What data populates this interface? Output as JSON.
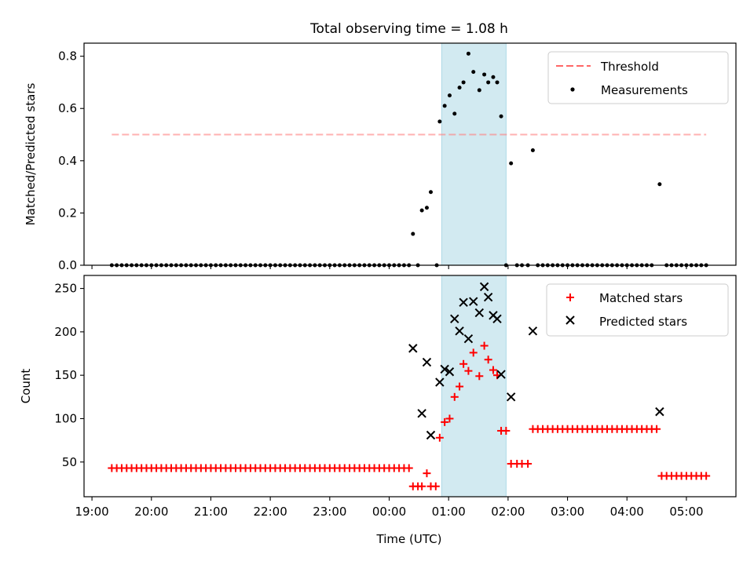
{
  "figure": {
    "title": "Total observing time = 1.08 h",
    "xlabel": "Time (UTC)",
    "x_tick_labels": [
      "19:00",
      "20:00",
      "21:00",
      "22:00",
      "23:00",
      "00:00",
      "01:00",
      "02:00",
      "03:00",
      "04:00",
      "05:00"
    ],
    "shaded_span": [
      "00:53",
      "01:58"
    ],
    "span_color": "#add8e6"
  },
  "chart_data": [
    {
      "type": "scatter",
      "ylabel": "Matched/Predicted stars",
      "xlim": [
        "18:52",
        "05:50"
      ],
      "ylim": [
        0,
        0.85
      ],
      "y_ticks": [
        "0.0",
        "0.2",
        "0.4",
        "0.6",
        "0.8"
      ],
      "legend_position": "top-right",
      "threshold": {
        "name": "Threshold",
        "value": 0.5,
        "x_range": [
          "19:20",
          "05:20"
        ],
        "color": "#ff7f7f",
        "style": "dashed"
      },
      "series": [
        {
          "name": "Measurements",
          "color": "#000000",
          "points": [
            [
              "19:20",
              0
            ],
            [
              "19:25",
              0
            ],
            [
              "19:30",
              0
            ],
            [
              "19:35",
              0
            ],
            [
              "19:40",
              0
            ],
            [
              "19:45",
              0
            ],
            [
              "19:50",
              0
            ],
            [
              "19:55",
              0
            ],
            [
              "20:00",
              0
            ],
            [
              "20:05",
              0
            ],
            [
              "20:10",
              0
            ],
            [
              "20:15",
              0
            ],
            [
              "20:20",
              0
            ],
            [
              "20:25",
              0
            ],
            [
              "20:30",
              0
            ],
            [
              "20:35",
              0
            ],
            [
              "20:40",
              0
            ],
            [
              "20:45",
              0
            ],
            [
              "20:50",
              0
            ],
            [
              "20:55",
              0
            ],
            [
              "21:00",
              0
            ],
            [
              "21:05",
              0
            ],
            [
              "21:10",
              0
            ],
            [
              "21:15",
              0
            ],
            [
              "21:20",
              0
            ],
            [
              "21:25",
              0
            ],
            [
              "21:30",
              0
            ],
            [
              "21:35",
              0
            ],
            [
              "21:40",
              0
            ],
            [
              "21:45",
              0
            ],
            [
              "21:50",
              0
            ],
            [
              "21:55",
              0
            ],
            [
              "22:00",
              0
            ],
            [
              "22:05",
              0
            ],
            [
              "22:10",
              0
            ],
            [
              "22:15",
              0
            ],
            [
              "22:20",
              0
            ],
            [
              "22:25",
              0
            ],
            [
              "22:30",
              0
            ],
            [
              "22:35",
              0
            ],
            [
              "22:40",
              0
            ],
            [
              "22:45",
              0
            ],
            [
              "22:50",
              0
            ],
            [
              "22:55",
              0
            ],
            [
              "23:00",
              0
            ],
            [
              "23:05",
              0
            ],
            [
              "23:10",
              0
            ],
            [
              "23:15",
              0
            ],
            [
              "23:20",
              0
            ],
            [
              "23:25",
              0
            ],
            [
              "23:30",
              0
            ],
            [
              "23:35",
              0
            ],
            [
              "23:40",
              0
            ],
            [
              "23:45",
              0
            ],
            [
              "23:50",
              0
            ],
            [
              "23:55",
              0
            ],
            [
              "00:00",
              0
            ],
            [
              "00:05",
              0
            ],
            [
              "00:10",
              0
            ],
            [
              "00:15",
              0
            ],
            [
              "00:20",
              0
            ],
            [
              "00:24",
              0.12
            ],
            [
              "00:29",
              0
            ],
            [
              "00:33",
              0.21
            ],
            [
              "00:38",
              0.22
            ],
            [
              "00:42",
              0.28
            ],
            [
              "00:48",
              0
            ],
            [
              "00:51",
              0.55
            ],
            [
              "00:56",
              0.61
            ],
            [
              "01:01",
              0.65
            ],
            [
              "01:06",
              0.58
            ],
            [
              "01:11",
              0.68
            ],
            [
              "01:15",
              0.7
            ],
            [
              "01:20",
              0.81
            ],
            [
              "01:25",
              0.74
            ],
            [
              "01:31",
              0.67
            ],
            [
              "01:36",
              0.73
            ],
            [
              "01:40",
              0.7
            ],
            [
              "01:45",
              0.72
            ],
            [
              "01:49",
              0.7
            ],
            [
              "01:53",
              0.57
            ],
            [
              "01:58",
              0
            ],
            [
              "02:03",
              0.39
            ],
            [
              "02:09",
              0
            ],
            [
              "02:14",
              0
            ],
            [
              "02:20",
              0
            ],
            [
              "02:25",
              0.44
            ],
            [
              "02:30",
              0
            ],
            [
              "02:35",
              0
            ],
            [
              "02:40",
              0
            ],
            [
              "02:45",
              0
            ],
            [
              "02:50",
              0
            ],
            [
              "02:55",
              0
            ],
            [
              "03:00",
              0
            ],
            [
              "03:05",
              0
            ],
            [
              "03:10",
              0
            ],
            [
              "03:15",
              0
            ],
            [
              "03:20",
              0
            ],
            [
              "03:25",
              0
            ],
            [
              "03:30",
              0
            ],
            [
              "03:35",
              0
            ],
            [
              "03:40",
              0
            ],
            [
              "03:45",
              0
            ],
            [
              "03:50",
              0
            ],
            [
              "03:55",
              0
            ],
            [
              "04:00",
              0
            ],
            [
              "04:05",
              0
            ],
            [
              "04:10",
              0
            ],
            [
              "04:15",
              0
            ],
            [
              "04:20",
              0
            ],
            [
              "04:25",
              0
            ],
            [
              "04:33",
              0.31
            ],
            [
              "04:40",
              0
            ],
            [
              "04:45",
              0
            ],
            [
              "04:50",
              0
            ],
            [
              "04:55",
              0
            ],
            [
              "05:00",
              0
            ],
            [
              "05:05",
              0
            ],
            [
              "05:10",
              0
            ],
            [
              "05:15",
              0
            ],
            [
              "05:20",
              0
            ]
          ]
        }
      ]
    },
    {
      "type": "scatter",
      "ylabel": "Count",
      "xlim": [
        "18:52",
        "05:50"
      ],
      "ylim": [
        10,
        265
      ],
      "y_ticks": [
        "50",
        "100",
        "150",
        "200",
        "250"
      ],
      "legend_position": "top-right",
      "series": [
        {
          "name": "Matched stars",
          "color": "#ff0000",
          "marker": "plus",
          "points": [
            [
              "19:20",
              43
            ],
            [
              "19:25",
              43
            ],
            [
              "19:30",
              43
            ],
            [
              "19:35",
              43
            ],
            [
              "19:40",
              43
            ],
            [
              "19:45",
              43
            ],
            [
              "19:50",
              43
            ],
            [
              "19:55",
              43
            ],
            [
              "20:00",
              43
            ],
            [
              "20:05",
              43
            ],
            [
              "20:10",
              43
            ],
            [
              "20:15",
              43
            ],
            [
              "20:20",
              43
            ],
            [
              "20:25",
              43
            ],
            [
              "20:30",
              43
            ],
            [
              "20:35",
              43
            ],
            [
              "20:40",
              43
            ],
            [
              "20:45",
              43
            ],
            [
              "20:50",
              43
            ],
            [
              "20:55",
              43
            ],
            [
              "21:00",
              43
            ],
            [
              "21:05",
              43
            ],
            [
              "21:10",
              43
            ],
            [
              "21:15",
              43
            ],
            [
              "21:20",
              43
            ],
            [
              "21:25",
              43
            ],
            [
              "21:30",
              43
            ],
            [
              "21:35",
              43
            ],
            [
              "21:40",
              43
            ],
            [
              "21:45",
              43
            ],
            [
              "21:50",
              43
            ],
            [
              "21:55",
              43
            ],
            [
              "22:00",
              43
            ],
            [
              "22:05",
              43
            ],
            [
              "22:10",
              43
            ],
            [
              "22:15",
              43
            ],
            [
              "22:20",
              43
            ],
            [
              "22:25",
              43
            ],
            [
              "22:30",
              43
            ],
            [
              "22:35",
              43
            ],
            [
              "22:40",
              43
            ],
            [
              "22:45",
              43
            ],
            [
              "22:50",
              43
            ],
            [
              "22:55",
              43
            ],
            [
              "23:00",
              43
            ],
            [
              "23:05",
              43
            ],
            [
              "23:10",
              43
            ],
            [
              "23:15",
              43
            ],
            [
              "23:20",
              43
            ],
            [
              "23:25",
              43
            ],
            [
              "23:30",
              43
            ],
            [
              "23:35",
              43
            ],
            [
              "23:40",
              43
            ],
            [
              "23:45",
              43
            ],
            [
              "23:50",
              43
            ],
            [
              "23:55",
              43
            ],
            [
              "00:00",
              43
            ],
            [
              "00:05",
              43
            ],
            [
              "00:10",
              43
            ],
            [
              "00:15",
              43
            ],
            [
              "00:20",
              43
            ],
            [
              "00:24",
              22
            ],
            [
              "00:29",
              22
            ],
            [
              "00:33",
              22
            ],
            [
              "00:38",
              37
            ],
            [
              "00:42",
              22
            ],
            [
              "00:47",
              22
            ],
            [
              "00:51",
              78
            ],
            [
              "00:56",
              96
            ],
            [
              "01:01",
              100
            ],
            [
              "01:06",
              125
            ],
            [
              "01:11",
              137
            ],
            [
              "01:15",
              163
            ],
            [
              "01:20",
              155
            ],
            [
              "01:25",
              176
            ],
            [
              "01:31",
              149
            ],
            [
              "01:36",
              184
            ],
            [
              "01:40",
              168
            ],
            [
              "01:45",
              156
            ],
            [
              "01:49",
              150
            ],
            [
              "01:53",
              86
            ],
            [
              "01:58",
              86
            ],
            [
              "02:03",
              48
            ],
            [
              "02:09",
              48
            ],
            [
              "02:14",
              48
            ],
            [
              "02:20",
              48
            ],
            [
              "02:25",
              88
            ],
            [
              "02:30",
              88
            ],
            [
              "02:35",
              88
            ],
            [
              "02:40",
              88
            ],
            [
              "02:45",
              88
            ],
            [
              "02:50",
              88
            ],
            [
              "02:55",
              88
            ],
            [
              "03:00",
              88
            ],
            [
              "03:05",
              88
            ],
            [
              "03:10",
              88
            ],
            [
              "03:15",
              88
            ],
            [
              "03:20",
              88
            ],
            [
              "03:25",
              88
            ],
            [
              "03:30",
              88
            ],
            [
              "03:35",
              88
            ],
            [
              "03:40",
              88
            ],
            [
              "03:45",
              88
            ],
            [
              "03:50",
              88
            ],
            [
              "03:55",
              88
            ],
            [
              "04:00",
              88
            ],
            [
              "04:05",
              88
            ],
            [
              "04:10",
              88
            ],
            [
              "04:15",
              88
            ],
            [
              "04:20",
              88
            ],
            [
              "04:25",
              88
            ],
            [
              "04:30",
              88
            ],
            [
              "04:35",
              34
            ],
            [
              "04:40",
              34
            ],
            [
              "04:45",
              34
            ],
            [
              "04:50",
              34
            ],
            [
              "04:55",
              34
            ],
            [
              "05:00",
              34
            ],
            [
              "05:05",
              34
            ],
            [
              "05:10",
              34
            ],
            [
              "05:15",
              34
            ],
            [
              "05:20",
              34
            ]
          ]
        },
        {
          "name": "Predicted stars",
          "color": "#000000",
          "marker": "x",
          "points": [
            [
              "00:24",
              181
            ],
            [
              "00:33",
              106
            ],
            [
              "00:38",
              165
            ],
            [
              "00:42",
              81
            ],
            [
              "00:51",
              142
            ],
            [
              "00:56",
              157
            ],
            [
              "01:01",
              154
            ],
            [
              "01:06",
              215
            ],
            [
              "01:11",
              201
            ],
            [
              "01:15",
              234
            ],
            [
              "01:20",
              192
            ],
            [
              "01:25",
              235
            ],
            [
              "01:31",
              222
            ],
            [
              "01:36",
              252
            ],
            [
              "01:40",
              240
            ],
            [
              "01:45",
              219
            ],
            [
              "01:49",
              215
            ],
            [
              "01:53",
              151
            ],
            [
              "02:03",
              125
            ],
            [
              "02:25",
              201
            ],
            [
              "04:33",
              108
            ]
          ]
        }
      ]
    }
  ]
}
